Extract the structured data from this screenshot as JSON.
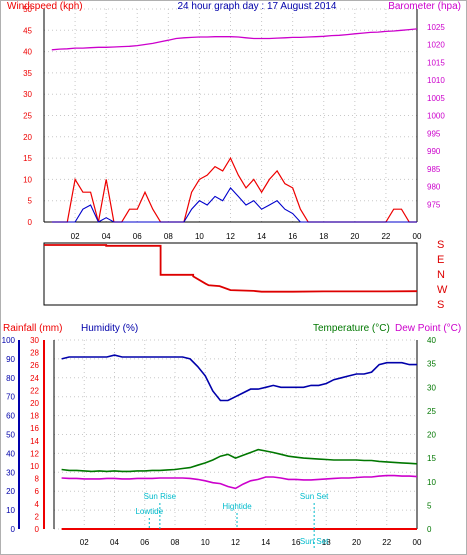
{
  "colors": {
    "wind": "#ee0000",
    "gust": "#ee0000",
    "avg": "#0000cc",
    "baro": "#cc00cc",
    "rain": "#ee0000",
    "humidity": "#0000aa",
    "temp": "#007700",
    "dew": "#cc00cc",
    "dir": "#dd0000",
    "tide": "#00bbcc",
    "axis": "#000000",
    "grid": "#c8c8c8"
  },
  "chart_data": [
    {
      "type": "line",
      "title": "24 hour graph day : 17 August 2014",
      "ylabel": "Windspeed (kph)",
      "ylabel_right": "Barometer (hpa)",
      "ylim": [
        0,
        50
      ],
      "ylim_right": [
        970,
        1030
      ],
      "grid": true,
      "x_ticks": [
        "02",
        "04",
        "06",
        "08",
        "10",
        "12",
        "14",
        "16",
        "18",
        "20",
        "22",
        "00"
      ],
      "y_ticks": [
        "0",
        "5",
        "10",
        "15",
        "20",
        "25",
        "30",
        "35",
        "40",
        "45",
        "50"
      ],
      "y_ticks_right": [
        "975",
        "980",
        "985",
        "990",
        "995",
        "1000",
        "1005",
        "1010",
        "1015",
        "1020",
        "1025"
      ],
      "x": [
        0.5,
        1,
        1.5,
        2,
        2.5,
        3,
        3.5,
        4,
        4.5,
        5,
        5.5,
        6,
        6.5,
        7,
        7.5,
        8,
        8.5,
        9,
        9.5,
        10,
        10.5,
        11,
        11.5,
        12,
        12.5,
        13,
        13.5,
        14,
        14.5,
        15,
        15.5,
        16,
        16.5,
        17,
        17.5,
        18,
        18.5,
        19,
        19.5,
        20,
        20.5,
        21,
        21.5,
        22,
        22.5,
        23,
        23.5,
        24
      ],
      "series": [
        {
          "name": "Barometer",
          "values": [
            1018.5,
            1018.7,
            1018.8,
            1019.0,
            1019.0,
            1019.1,
            1019.2,
            1019.2,
            1019.3,
            1019.4,
            1019.5,
            1019.7,
            1020.0,
            1020.3,
            1020.8,
            1021.2,
            1021.7,
            1021.9,
            1022.0,
            1022.1,
            1022.1,
            1022.2,
            1022.2,
            1022.2,
            1022.1,
            1021.9,
            1021.7,
            1021.7,
            1021.7,
            1021.8,
            1021.9,
            1022.0,
            1022.0,
            1022.1,
            1022.2,
            1022.3,
            1022.5,
            1022.6,
            1022.8,
            1023.0,
            1023.2,
            1023.4,
            1023.5,
            1023.7,
            1023.8,
            1024.0,
            1024.2,
            1024.4
          ]
        },
        {
          "name": "Wind Speed",
          "values": [
            0,
            0,
            0,
            0,
            3,
            4,
            0,
            1,
            0,
            0,
            0,
            0,
            0,
            0,
            0,
            0,
            0,
            0,
            3,
            5,
            4,
            6,
            5,
            8,
            6,
            4,
            5,
            3,
            4,
            5,
            3,
            2,
            0,
            0,
            0,
            0,
            0,
            0,
            0,
            0,
            0,
            0,
            0,
            0,
            0,
            0,
            0,
            0
          ]
        },
        {
          "name": "Gust",
          "values": [
            0,
            0,
            0,
            10,
            7,
            7,
            0,
            10,
            0,
            0,
            3,
            3,
            7,
            3,
            0,
            0,
            0,
            0,
            7,
            10,
            11,
            13,
            12,
            15,
            11,
            8,
            10,
            7,
            10,
            12,
            9,
            8,
            3,
            0,
            0,
            0,
            0,
            0,
            0,
            0,
            0,
            0,
            0,
            0,
            3,
            3,
            0,
            0
          ]
        }
      ]
    },
    {
      "type": "line",
      "ylabel_right": "S E N W S",
      "y_ticks_right": [
        "S",
        "E",
        "N",
        "W",
        "S"
      ],
      "series": [
        {
          "name": "Wind Direction",
          "x": [
            0,
            4,
            4,
            7.5,
            7.5,
            9.6,
            9.6,
            10.4,
            10.6,
            11.3,
            12,
            13.5,
            14,
            16,
            18,
            20,
            22,
            24
          ],
          "values": [
            180,
            180,
            175,
            175,
            355,
            355,
            345,
            300,
            290,
            285,
            260,
            255,
            250,
            250,
            252,
            252,
            252,
            253
          ]
        }
      ]
    },
    {
      "type": "line",
      "ylabel": "Rainfall (mm)",
      "ylabel2": "Humidity (%)",
      "ylabel_right": "Temperature (°C)",
      "ylabel_right2": "Dew Point (°C)",
      "humidity_ticks": [
        "0",
        "10",
        "20",
        "30",
        "40",
        "50",
        "60",
        "70",
        "80",
        "90",
        "100"
      ],
      "rain_ticks": [
        "0",
        "2",
        "4",
        "6",
        "8",
        "10",
        "12",
        "14",
        "16",
        "18",
        "20",
        "22",
        "24",
        "26",
        "28",
        "30"
      ],
      "temp_ticks": [
        "0",
        "5",
        "10",
        "15",
        "20",
        "25",
        "30",
        "35",
        "40"
      ],
      "x_ticks": [
        "02",
        "04",
        "06",
        "08",
        "10",
        "12",
        "14",
        "16",
        "18",
        "20",
        "22",
        "00"
      ],
      "annotations": [
        "Sun Rise",
        "Lowtide",
        "Hightide",
        "Sun Set",
        "Sun Set"
      ],
      "x": [
        0.5,
        1,
        1.5,
        2,
        2.5,
        3,
        3.5,
        4,
        4.5,
        5,
        5.5,
        6,
        6.5,
        7,
        7.5,
        8,
        8.5,
        9,
        9.5,
        10,
        10.5,
        11,
        11.5,
        12,
        12.5,
        13,
        13.5,
        14,
        14.5,
        15,
        15.5,
        16,
        16.5,
        17,
        17.5,
        18,
        18.5,
        19,
        19.5,
        20,
        20.5,
        21,
        21.5,
        22,
        22.5,
        23,
        23.5,
        24
      ],
      "series": [
        {
          "name": "Humidity",
          "values": [
            90,
            91,
            91,
            91,
            91,
            91,
            91,
            92,
            91,
            91,
            91,
            91,
            91,
            91,
            91,
            91,
            91,
            90,
            86,
            81,
            73,
            68,
            68,
            70,
            72,
            74,
            74,
            75,
            76,
            75,
            75,
            75,
            75,
            76,
            76,
            77,
            79,
            80,
            81,
            82,
            82,
            83,
            87,
            88,
            88,
            88,
            87,
            87
          ]
        },
        {
          "name": "Temperature",
          "values": [
            12.6,
            12.4,
            12.4,
            12.3,
            12.2,
            12.3,
            12.2,
            12.3,
            12.2,
            12.2,
            12.3,
            12.3,
            12.4,
            12.4,
            12.5,
            12.6,
            12.8,
            13.0,
            13.5,
            14.0,
            14.6,
            15.4,
            15.8,
            15.0,
            15.6,
            16.2,
            16.8,
            16.5,
            16.2,
            15.8,
            15.4,
            15.2,
            15.0,
            14.9,
            14.8,
            14.7,
            14.6,
            14.6,
            14.6,
            14.6,
            14.5,
            14.5,
            14.3,
            14.2,
            14.1,
            14.0,
            13.9,
            13.8
          ]
        },
        {
          "name": "Dew Point",
          "values": [
            10.8,
            10.7,
            10.7,
            10.6,
            10.6,
            10.6,
            10.7,
            10.7,
            10.6,
            10.6,
            10.7,
            10.7,
            10.7,
            10.8,
            10.8,
            10.8,
            10.8,
            10.7,
            10.5,
            10.2,
            9.8,
            9.6,
            9.0,
            8.6,
            9.5,
            10.2,
            10.5,
            11.0,
            11.0,
            10.8,
            10.5,
            10.5,
            10.4,
            10.4,
            10.5,
            10.6,
            10.7,
            10.8,
            10.8,
            10.9,
            11.0,
            11.0,
            11.2,
            11.3,
            11.3,
            11.2,
            11.2,
            11.1
          ]
        },
        {
          "name": "Rainfall",
          "values": [
            0,
            0,
            0,
            0,
            0,
            0,
            0,
            0,
            0,
            0,
            0,
            0,
            0,
            0,
            0,
            0,
            0,
            0,
            0,
            0,
            0,
            0,
            0,
            0,
            0,
            0,
            0,
            0,
            0,
            0,
            0,
            0,
            0,
            0,
            0,
            0,
            0,
            0,
            0,
            0,
            0,
            0,
            0,
            0,
            0,
            0,
            0,
            0
          ]
        }
      ]
    }
  ]
}
